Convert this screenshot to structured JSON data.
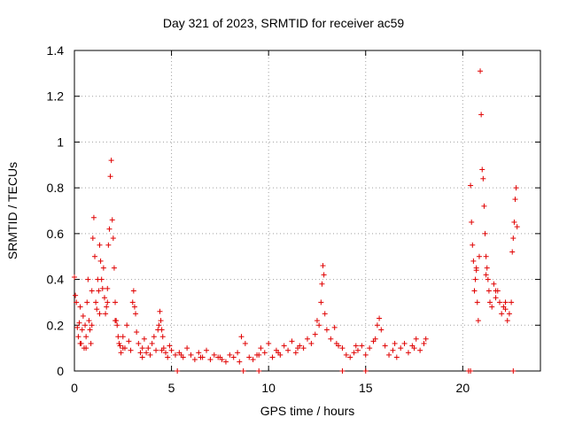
{
  "chart_data": {
    "type": "scatter",
    "title": "Day 321 of 2023, SRMTID for receiver ac59",
    "xlabel": "GPS time / hours",
    "ylabel": "SRMTID / TECUs",
    "xlim": [
      0,
      24
    ],
    "ylim": [
      0,
      1.4
    ],
    "xticks": [
      0,
      5,
      10,
      15,
      20
    ],
    "yticks": [
      0,
      0.2,
      0.4,
      0.6,
      0.8,
      1.0,
      1.2,
      1.4
    ],
    "xtick_labels": [
      "0",
      "5",
      "10",
      "15",
      "20"
    ],
    "ytick_labels": [
      "0",
      "0.2",
      "0.4",
      "0.6",
      "0.8",
      "1",
      "1.2",
      "1.4"
    ],
    "grid": true,
    "series": [
      {
        "name": "SRMTID",
        "color": "#e00000",
        "marker": "plus",
        "x": [
          0.0,
          0.05,
          0.1,
          0.15,
          0.2,
          0.25,
          0.3,
          0.35,
          0.4,
          0.45,
          0.5,
          0.55,
          0.6,
          0.65,
          0.7,
          0.75,
          0.8,
          0.85,
          0.9,
          0.95,
          1.0,
          1.05,
          1.1,
          1.15,
          1.2,
          1.25,
          1.3,
          1.35,
          1.4,
          1.45,
          1.5,
          1.55,
          1.6,
          1.65,
          1.7,
          1.75,
          1.8,
          1.85,
          1.9,
          1.95,
          2.0,
          2.05,
          2.1,
          2.15,
          2.2,
          2.25,
          2.3,
          2.35,
          2.4,
          2.5,
          2.6,
          2.7,
          2.8,
          2.9,
          3.0,
          3.05,
          3.1,
          3.15,
          3.2,
          3.3,
          3.4,
          3.5,
          3.6,
          3.7,
          3.8,
          3.9,
          4.0,
          4.1,
          4.2,
          4.3,
          4.35,
          4.4,
          4.45,
          4.5,
          4.55,
          4.6,
          4.7,
          4.8,
          4.9,
          5.0,
          5.2,
          5.4,
          5.6,
          5.8,
          6.0,
          6.2,
          6.4,
          6.6,
          6.8,
          7.0,
          7.2,
          7.4,
          7.6,
          7.8,
          8.0,
          8.2,
          8.4,
          8.6,
          8.8,
          9.0,
          9.2,
          9.4,
          9.6,
          9.8,
          10.0,
          10.2,
          10.4,
          10.6,
          10.8,
          11.0,
          11.2,
          11.4,
          11.6,
          11.8,
          12.0,
          12.2,
          12.4,
          12.6,
          12.7,
          12.75,
          12.8,
          12.85,
          12.9,
          13.0,
          13.2,
          13.4,
          13.6,
          13.8,
          14.0,
          14.2,
          14.4,
          14.6,
          14.8,
          15.0,
          15.2,
          15.4,
          15.6,
          15.7,
          15.8,
          16.0,
          16.2,
          16.4,
          16.6,
          16.8,
          17.0,
          17.2,
          17.4,
          17.6,
          17.8,
          18.0,
          18.1,
          20.3,
          20.4,
          20.45,
          20.5,
          20.55,
          20.6,
          20.65,
          20.7,
          20.75,
          20.8,
          20.85,
          20.9,
          20.95,
          21.0,
          21.05,
          21.1,
          21.15,
          21.2,
          21.25,
          21.3,
          21.35,
          21.4,
          21.5,
          21.6,
          21.7,
          21.8,
          21.9,
          22.0,
          22.1,
          22.2,
          22.3,
          22.4,
          22.5,
          22.55,
          22.6,
          22.65,
          22.7,
          22.75,
          22.8,
          0.3,
          0.6,
          0.9,
          1.3,
          1.7,
          2.1,
          2.5,
          3.5,
          4.5,
          5.5,
          6.5,
          7.5,
          8.5,
          9.5,
          10.5,
          11.5,
          12.5,
          13.5,
          14.5,
          15.5,
          16.5,
          17.5,
          20.7,
          21.2,
          21.7,
          22.2,
          5.3,
          8.7,
          9.5,
          13.8,
          15.0,
          20.4,
          22.6
        ],
        "y": [
          0.41,
          0.33,
          0.3,
          0.19,
          0.15,
          0.21,
          0.28,
          0.12,
          0.18,
          0.24,
          0.1,
          0.2,
          0.15,
          0.3,
          0.4,
          0.22,
          0.18,
          0.12,
          0.35,
          0.58,
          0.67,
          0.5,
          0.3,
          0.27,
          0.4,
          0.35,
          0.55,
          0.48,
          0.4,
          0.36,
          0.45,
          0.32,
          0.25,
          0.28,
          0.36,
          0.55,
          0.62,
          0.85,
          0.92,
          0.66,
          0.58,
          0.45,
          0.3,
          0.22,
          0.2,
          0.15,
          0.12,
          0.11,
          0.08,
          0.15,
          0.1,
          0.2,
          0.13,
          0.09,
          0.3,
          0.35,
          0.28,
          0.25,
          0.17,
          0.12,
          0.08,
          0.1,
          0.14,
          0.08,
          0.1,
          0.07,
          0.12,
          0.15,
          0.09,
          0.18,
          0.2,
          0.26,
          0.22,
          0.18,
          0.15,
          0.1,
          0.08,
          0.06,
          0.11,
          0.09,
          0.07,
          0.08,
          0.06,
          0.1,
          0.07,
          0.05,
          0.08,
          0.06,
          0.09,
          0.05,
          0.07,
          0.06,
          0.05,
          0.04,
          0.07,
          0.06,
          0.08,
          0.15,
          0.12,
          0.06,
          0.05,
          0.07,
          0.1,
          0.08,
          0.12,
          0.06,
          0.09,
          0.07,
          0.11,
          0.09,
          0.13,
          0.08,
          0.11,
          0.1,
          0.14,
          0.12,
          0.16,
          0.2,
          0.3,
          0.38,
          0.46,
          0.42,
          0.25,
          0.18,
          0.14,
          0.19,
          0.11,
          0.1,
          0.07,
          0.06,
          0.08,
          0.09,
          0.11,
          0.07,
          0.1,
          0.13,
          0.2,
          0.23,
          0.18,
          0.11,
          0.07,
          0.09,
          0.06,
          0.1,
          0.12,
          0.08,
          0.11,
          0.14,
          0.09,
          0.12,
          0.14,
          0.0,
          0.81,
          0.65,
          0.55,
          0.48,
          0.35,
          0.4,
          0.45,
          0.3,
          0.22,
          0.5,
          1.31,
          1.12,
          0.88,
          0.84,
          0.72,
          0.6,
          0.5,
          0.45,
          0.4,
          0.35,
          0.3,
          0.28,
          0.38,
          0.32,
          0.35,
          0.3,
          0.25,
          0.28,
          0.3,
          0.22,
          0.25,
          0.3,
          0.52,
          0.58,
          0.65,
          0.75,
          0.8,
          0.63,
          0.12,
          0.1,
          0.2,
          0.25,
          0.3,
          0.22,
          0.1,
          0.06,
          0.09,
          0.07,
          0.06,
          0.06,
          0.04,
          0.07,
          0.08,
          0.1,
          0.22,
          0.12,
          0.11,
          0.14,
          0.12,
          0.1,
          0.44,
          0.42,
          0.35,
          0.27,
          0.0,
          0.0,
          0.0,
          0.0,
          0.0,
          0.0,
          0.0
        ]
      }
    ]
  }
}
